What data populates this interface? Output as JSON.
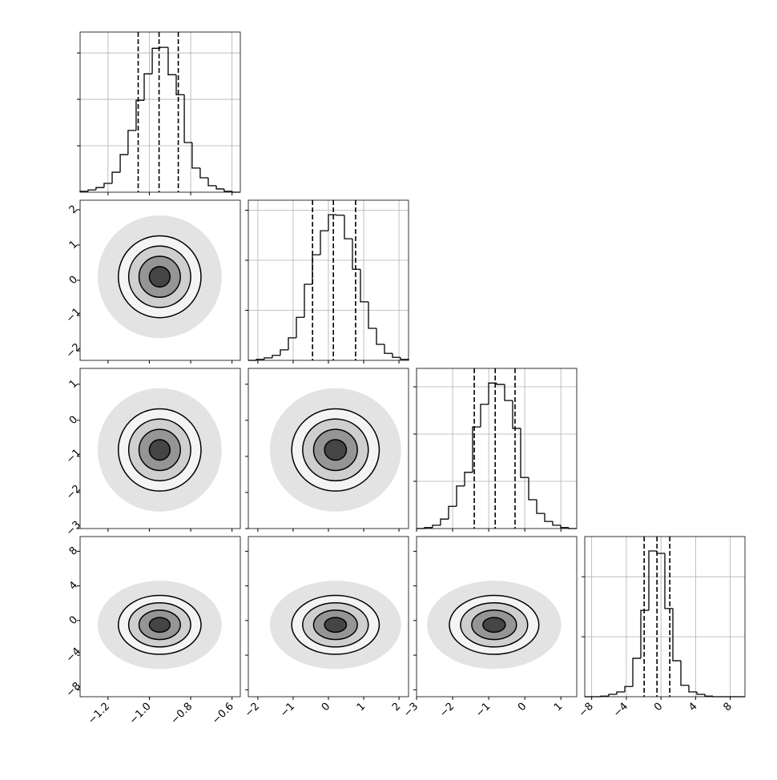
{
  "chart_data": {
    "type": "corner",
    "levels": [
      2,
      1.5,
      1,
      0.5
    ],
    "level_fills": [
      "#f4f4f4",
      "#cfcfcf",
      "#959595",
      "#454545"
    ],
    "scatter_level": 3,
    "scatter_color": "#e3e3e3",
    "line_color": "#000000",
    "grid": true,
    "parameters": [
      {
        "xlim": [
          -1.335,
          -0.56
        ],
        "xticks": [
          {
            "value": -1.2,
            "label": "−1.2"
          },
          {
            "value": -1.0,
            "label": "−1.0"
          },
          {
            "value": -0.8,
            "label": "−0.8"
          },
          {
            "value": -0.6,
            "label": "−0.6"
          }
        ],
        "bins": [
          -1.335,
          -1.296,
          -1.258,
          -1.219,
          -1.18,
          -1.141,
          -1.103,
          -1.064,
          -1.025,
          -0.986,
          -0.948,
          -0.909,
          -0.87,
          -0.831,
          -0.793,
          -0.754,
          -0.715,
          -0.676,
          -0.638,
          -0.599,
          -0.56
        ],
        "counts": [
          0.02,
          0.05,
          0.1,
          0.19,
          0.43,
          0.81,
          1.33,
          1.98,
          2.55,
          3.1,
          3.12,
          2.53,
          2.1,
          1.07,
          0.52,
          0.31,
          0.14,
          0.07,
          0.02,
          0
        ],
        "quantiles": [
          -1.054,
          -0.953,
          -0.86
        ],
        "hist_ylim": [
          0,
          3.45
        ],
        "hist_yticks": [
          1,
          2,
          3
        ]
      },
      {
        "xlim": [
          -2.27,
          2.27
        ],
        "xticks": [
          {
            "value": -2,
            "label": "−2"
          },
          {
            "value": -1,
            "label": "−1"
          },
          0,
          1,
          2
        ],
        "bins": [
          -2.27,
          -2.043,
          -1.816,
          -1.589,
          -1.362,
          -1.135,
          -0.908,
          -0.681,
          -0.454,
          -0.227,
          0,
          0.227,
          0.454,
          0.681,
          0.908,
          1.135,
          1.362,
          1.589,
          1.816,
          2.043,
          2.27
        ],
        "counts": [
          0,
          0.02,
          0.05,
          0.1,
          0.21,
          0.45,
          0.86,
          1.52,
          2.11,
          2.59,
          2.91,
          2.9,
          2.43,
          1.82,
          1.17,
          0.64,
          0.32,
          0.14,
          0.06,
          0.02
        ],
        "quantiles": [
          -0.45,
          0.14,
          0.77
        ],
        "hist_ylim": [
          0,
          3.2
        ],
        "hist_yticks": [
          1,
          2,
          3
        ]
      },
      {
        "xlim": [
          -3,
          1.44
        ],
        "xticks": [
          {
            "value": -3,
            "label": "−3"
          },
          {
            "value": -2,
            "label": "−2"
          },
          {
            "value": -1,
            "label": "−1"
          },
          0,
          1
        ],
        "bins": [
          -3,
          -2.778,
          -2.556,
          -2.334,
          -2.112,
          -1.89,
          -1.668,
          -1.446,
          -1.224,
          -1.002,
          -0.78,
          -0.558,
          -0.336,
          -0.114,
          0.108,
          0.33,
          0.552,
          0.774,
          0.996,
          1.218,
          1.44
        ],
        "counts": [
          0,
          0.02,
          0.07,
          0.2,
          0.47,
          0.9,
          1.19,
          2.15,
          2.63,
          3.08,
          3.05,
          2.71,
          2.12,
          1.08,
          0.61,
          0.32,
          0.15,
          0.07,
          0.02,
          0
        ],
        "quantiles": [
          -1.4,
          -0.82,
          -0.27
        ],
        "hist_ylim": [
          0,
          3.39
        ],
        "hist_yticks": [
          1,
          2,
          3
        ]
      },
      {
        "xlim": [
          -8.8,
          9.7
        ],
        "xticks": [
          {
            "value": -8,
            "label": "−8"
          },
          {
            "value": -4,
            "label": "−4"
          },
          0,
          4,
          8
        ],
        "bins": [
          -8.8,
          -7.875,
          -6.95,
          -6.025,
          -5.1,
          -4.175,
          -3.25,
          -2.325,
          -1.4,
          -0.475,
          0.45,
          1.375,
          2.3,
          3.225,
          4.15,
          5.075,
          6,
          6.925,
          7.85,
          8.775,
          9.7
        ],
        "counts": [
          0,
          0,
          0.01,
          0.04,
          0.08,
          0.17,
          0.64,
          1.44,
          2.43,
          2.39,
          1.47,
          0.6,
          0.19,
          0.08,
          0.04,
          0.01,
          0,
          0,
          0,
          0
        ],
        "quantiles": [
          -1.94,
          -0.46,
          1.02
        ],
        "hist_ylim": [
          0,
          2.67
        ],
        "hist_yticks": [
          1,
          2
        ]
      }
    ],
    "pairs": [
      {
        "x": 0,
        "y": 1,
        "center": [
          -0.95,
          0.1
        ],
        "sigma": [
          0.1,
          0.58
        ]
      },
      {
        "x": 0,
        "y": 2,
        "center": [
          -0.95,
          -0.82
        ],
        "sigma": [
          0.1,
          0.57
        ]
      },
      {
        "x": 1,
        "y": 2,
        "center": [
          0.2,
          -0.82
        ],
        "sigma": [
          0.62,
          0.57
        ]
      },
      {
        "x": 0,
        "y": 3,
        "center": [
          -0.95,
          -0.5
        ],
        "sigma": [
          0.1,
          1.7
        ]
      },
      {
        "x": 1,
        "y": 3,
        "center": [
          0.2,
          -0.5
        ],
        "sigma": [
          0.62,
          1.7
        ]
      },
      {
        "x": 2,
        "y": 3,
        "center": [
          -0.85,
          -0.5
        ],
        "sigma": [
          0.62,
          1.7
        ]
      }
    ]
  }
}
